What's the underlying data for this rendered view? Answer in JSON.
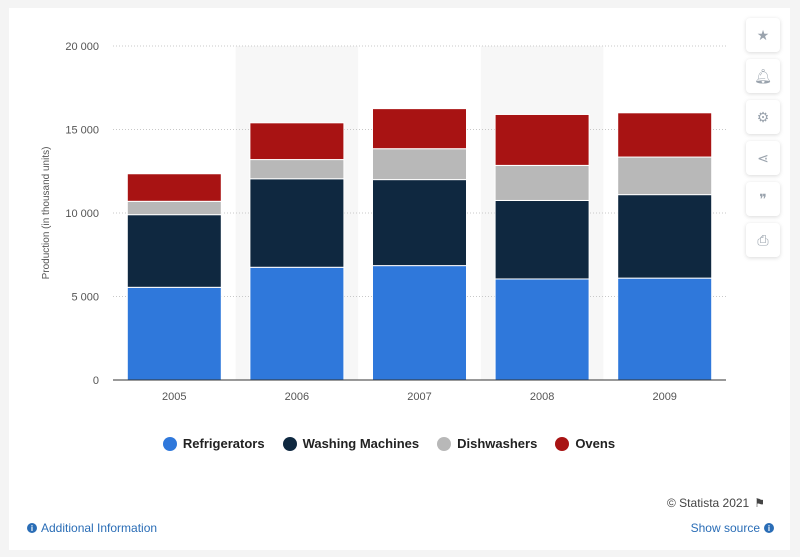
{
  "chart_data": {
    "type": "bar",
    "stacked": true,
    "categories": [
      "2005",
      "2006",
      "2007",
      "2008",
      "2009"
    ],
    "series": [
      {
        "name": "Refrigerators",
        "color": "#2f78db",
        "values": [
          5550,
          6750,
          6850,
          6050,
          6100
        ]
      },
      {
        "name": "Washing Machines",
        "color": "#0f2840",
        "values": [
          4350,
          5300,
          5150,
          4700,
          5000
        ]
      },
      {
        "name": "Dishwashers",
        "color": "#b8b8b8",
        "values": [
          800,
          1150,
          1850,
          2100,
          2250
        ]
      },
      {
        "name": "Ovens",
        "color": "#a81313",
        "values": [
          1650,
          2200,
          2400,
          3050,
          2650
        ]
      }
    ],
    "yticks": [
      "0",
      "5 000",
      "10 000",
      "15 000",
      "20 000"
    ],
    "ytick_values": [
      0,
      5000,
      10000,
      15000,
      20000
    ],
    "ylim": [
      0,
      20000
    ],
    "ylabel": "Production (in thousand units)",
    "xlabel": "",
    "grid": true,
    "legend_position": "bottom"
  },
  "toolbar": {
    "icons": [
      "star-icon",
      "bell-icon",
      "gear-icon",
      "share-icon",
      "quote-icon",
      "print-icon"
    ]
  },
  "footer": {
    "credit": "© Statista 2021",
    "additional_info": "Additional Information",
    "show_source": "Show source"
  }
}
